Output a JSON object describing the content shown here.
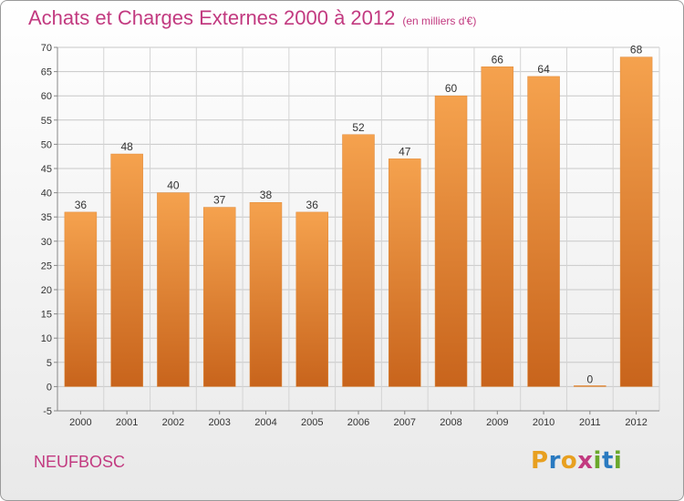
{
  "header": {
    "title": "Achats et Charges Externes 2000 à 2012",
    "subtitle": "(en milliers d'€)"
  },
  "footer": {
    "city": "NEUFBOSC",
    "logo_letters": [
      "P",
      "r",
      "o",
      "x",
      "i",
      "t",
      "i"
    ],
    "logo_colors": [
      "#e8a020",
      "#2a7ac0",
      "#e8a020",
      "#c23a80",
      "#6aa82c",
      "#2a7ac0",
      "#6aa82c"
    ]
  },
  "chart_data": {
    "type": "bar",
    "title": "Achats et Charges Externes 2000 à 2012",
    "subtitle": "(en milliers d'€)",
    "categories": [
      "2000",
      "2001",
      "2002",
      "2003",
      "2004",
      "2005",
      "2006",
      "2007",
      "2008",
      "2009",
      "2010",
      "2011",
      "2012"
    ],
    "values": [
      36,
      48,
      40,
      37,
      38,
      36,
      52,
      47,
      60,
      66,
      64,
      0,
      68
    ],
    "ylim": [
      -5,
      70
    ],
    "yticks": [
      -5,
      0,
      5,
      10,
      15,
      20,
      25,
      30,
      35,
      40,
      45,
      50,
      55,
      60,
      65,
      70
    ],
    "grid": true,
    "bar_color_top": "#f5a24e",
    "bar_color_bottom": "#c8641c"
  }
}
